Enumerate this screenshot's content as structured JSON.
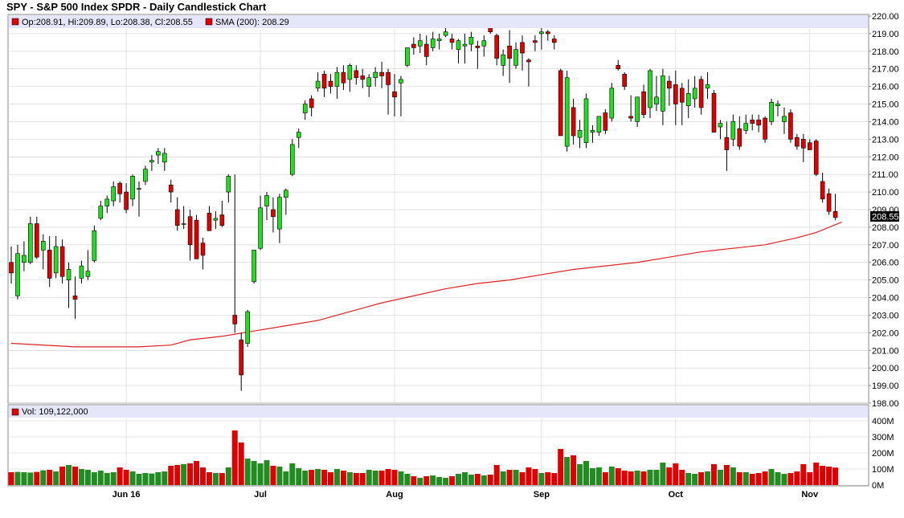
{
  "title": "SPY - S&P 500 Index SPDR - Daily Candlestick Chart",
  "colors": {
    "up": "#22dd22",
    "down": "#dd0000",
    "sma": "#dd2222",
    "legend_bg": "#e6e6fa",
    "grid": "#d0d0d0",
    "current_box": "#000000"
  },
  "price_legend": {
    "ohlc": "Op:208.91, Hi:209.89, Lo:208.38, Cl:208.55",
    "sma": "SMA (200): 208.29"
  },
  "volume_legend": {
    "label": "Vol: 109,122,000"
  },
  "current_price_label": "208.55",
  "chart_data": {
    "type": "candlestick",
    "price_axis": {
      "ylim": [
        198,
        220
      ],
      "ticks": [
        "198.00",
        "199.00",
        "200.00",
        "201.00",
        "202.00",
        "203.00",
        "204.00",
        "205.00",
        "206.00",
        "207.00",
        "208.00",
        "209.00",
        "210.00",
        "211.00",
        "212.00",
        "213.00",
        "214.00",
        "215.00",
        "216.00",
        "217.00",
        "218.00",
        "219.00",
        "220.00"
      ]
    },
    "volume_axis": {
      "ylim": [
        0,
        400
      ],
      "unit": "M",
      "ticks": [
        "0M",
        "100M",
        "200M",
        "300M",
        "400M"
      ]
    },
    "x_ticks": [
      {
        "label": "Jun 16",
        "index": 18
      },
      {
        "label": "Jul",
        "index": 39
      },
      {
        "label": "Aug",
        "index": 60
      },
      {
        "label": "Sep",
        "index": 83
      },
      {
        "label": "Oct",
        "index": 104
      },
      {
        "label": "Nov",
        "index": 125
      }
    ],
    "candles": [
      {
        "o": 206.0,
        "h": 206.9,
        "l": 204.8,
        "c": 205.4,
        "v": 80
      },
      {
        "o": 204.1,
        "h": 207.0,
        "l": 203.9,
        "c": 206.5,
        "v": 82
      },
      {
        "o": 206.0,
        "h": 207.2,
        "l": 205.5,
        "c": 206.4,
        "v": 80
      },
      {
        "o": 206.0,
        "h": 208.6,
        "l": 205.9,
        "c": 208.2,
        "v": 78
      },
      {
        "o": 208.2,
        "h": 208.6,
        "l": 206.2,
        "c": 206.3,
        "v": 82
      },
      {
        "o": 206.7,
        "h": 207.6,
        "l": 205.6,
        "c": 207.2,
        "v": 92
      },
      {
        "o": 206.7,
        "h": 207.5,
        "l": 204.6,
        "c": 205.1,
        "v": 95
      },
      {
        "o": 205.4,
        "h": 207.5,
        "l": 205.1,
        "c": 206.9,
        "v": 85
      },
      {
        "o": 206.9,
        "h": 207.3,
        "l": 204.8,
        "c": 205.2,
        "v": 115
      },
      {
        "o": 205.0,
        "h": 206.0,
        "l": 203.4,
        "c": 205.6,
        "v": 125
      },
      {
        "o": 204.1,
        "h": 205.2,
        "l": 202.8,
        "c": 203.9,
        "v": 115
      },
      {
        "o": 205.1,
        "h": 206.1,
        "l": 204.8,
        "c": 205.8,
        "v": 100
      },
      {
        "o": 205.2,
        "h": 206.7,
        "l": 205.0,
        "c": 205.5,
        "v": 95
      },
      {
        "o": 206.1,
        "h": 208.1,
        "l": 206.0,
        "c": 207.8,
        "v": 80
      },
      {
        "o": 208.5,
        "h": 209.5,
        "l": 208.4,
        "c": 209.2,
        "v": 90
      },
      {
        "o": 209.2,
        "h": 209.8,
        "l": 208.8,
        "c": 209.6,
        "v": 75
      },
      {
        "o": 209.5,
        "h": 210.6,
        "l": 209.2,
        "c": 210.3,
        "v": 80
      },
      {
        "o": 210.5,
        "h": 210.6,
        "l": 209.4,
        "c": 209.9,
        "v": 110
      },
      {
        "o": 210.0,
        "h": 210.5,
        "l": 208.8,
        "c": 209.0,
        "v": 95
      },
      {
        "o": 209.6,
        "h": 211.0,
        "l": 209.2,
        "c": 210.9,
        "v": 85
      },
      {
        "o": 210.2,
        "h": 210.6,
        "l": 208.6,
        "c": 210.2,
        "v": 70
      },
      {
        "o": 210.6,
        "h": 211.5,
        "l": 210.4,
        "c": 211.3,
        "v": 75
      },
      {
        "o": 211.7,
        "h": 212.1,
        "l": 211.2,
        "c": 211.8,
        "v": 72
      },
      {
        "o": 212.1,
        "h": 212.5,
        "l": 211.6,
        "c": 212.3,
        "v": 80
      },
      {
        "o": 211.7,
        "h": 212.5,
        "l": 211.2,
        "c": 212.2,
        "v": 85
      },
      {
        "o": 210.4,
        "h": 210.7,
        "l": 209.4,
        "c": 210.0,
        "v": 120
      },
      {
        "o": 209.0,
        "h": 209.7,
        "l": 207.8,
        "c": 208.1,
        "v": 125
      },
      {
        "o": 208.2,
        "h": 209.2,
        "l": 207.9,
        "c": 208.2,
        "v": 130
      },
      {
        "o": 208.6,
        "h": 209.0,
        "l": 206.1,
        "c": 207.0,
        "v": 135
      },
      {
        "o": 208.4,
        "h": 208.7,
        "l": 206.2,
        "c": 206.2,
        "v": 150
      },
      {
        "o": 207.1,
        "h": 207.4,
        "l": 205.6,
        "c": 206.4,
        "v": 110
      },
      {
        "o": 208.8,
        "h": 209.2,
        "l": 207.8,
        "c": 207.8,
        "v": 80
      },
      {
        "o": 208.4,
        "h": 208.9,
        "l": 207.9,
        "c": 208.5,
        "v": 75
      },
      {
        "o": 208.7,
        "h": 209.5,
        "l": 208.0,
        "c": 208.1,
        "v": 75
      },
      {
        "o": 210.0,
        "h": 211.0,
        "l": 209.4,
        "c": 210.9,
        "v": 110
      },
      {
        "o": 203.0,
        "h": 211.0,
        "l": 202.0,
        "c": 202.5,
        "v": 340
      },
      {
        "o": 201.6,
        "h": 202.0,
        "l": 198.7,
        "c": 199.6,
        "v": 265
      },
      {
        "o": 201.4,
        "h": 203.3,
        "l": 201.2,
        "c": 203.2,
        "v": 165
      },
      {
        "o": 204.9,
        "h": 206.7,
        "l": 204.8,
        "c": 206.7,
        "v": 150
      },
      {
        "o": 206.8,
        "h": 209.8,
        "l": 206.7,
        "c": 209.1,
        "v": 135
      },
      {
        "o": 209.2,
        "h": 210.0,
        "l": 208.4,
        "c": 209.8,
        "v": 155
      },
      {
        "o": 209.0,
        "h": 209.7,
        "l": 207.7,
        "c": 208.6,
        "v": 120
      },
      {
        "o": 207.9,
        "h": 209.9,
        "l": 207.1,
        "c": 209.7,
        "v": 115
      },
      {
        "o": 209.7,
        "h": 210.2,
        "l": 208.7,
        "c": 210.1,
        "v": 85
      },
      {
        "o": 211.0,
        "h": 213.0,
        "l": 210.9,
        "c": 212.7,
        "v": 135
      },
      {
        "o": 213.1,
        "h": 213.6,
        "l": 212.5,
        "c": 213.4,
        "v": 105
      },
      {
        "o": 214.5,
        "h": 215.2,
        "l": 214.1,
        "c": 215.0,
        "v": 90
      },
      {
        "o": 215.3,
        "h": 215.5,
        "l": 214.3,
        "c": 214.8,
        "v": 95
      },
      {
        "o": 215.9,
        "h": 216.8,
        "l": 215.7,
        "c": 216.3,
        "v": 100
      },
      {
        "o": 216.7,
        "h": 216.9,
        "l": 215.4,
        "c": 215.9,
        "v": 95
      },
      {
        "o": 216.3,
        "h": 216.7,
        "l": 215.6,
        "c": 216.0,
        "v": 80
      },
      {
        "o": 216.0,
        "h": 217.1,
        "l": 215.3,
        "c": 216.8,
        "v": 100
      },
      {
        "o": 216.8,
        "h": 217.2,
        "l": 215.8,
        "c": 216.2,
        "v": 90
      },
      {
        "o": 216.4,
        "h": 217.3,
        "l": 215.7,
        "c": 217.2,
        "v": 80
      },
      {
        "o": 216.9,
        "h": 217.2,
        "l": 216.1,
        "c": 216.5,
        "v": 75
      },
      {
        "o": 216.6,
        "h": 217.0,
        "l": 215.9,
        "c": 216.4,
        "v": 75
      },
      {
        "o": 216.0,
        "h": 216.7,
        "l": 215.4,
        "c": 216.5,
        "v": 95
      },
      {
        "o": 216.5,
        "h": 217.1,
        "l": 216.0,
        "c": 216.8,
        "v": 90
      },
      {
        "o": 216.8,
        "h": 217.4,
        "l": 215.9,
        "c": 216.6,
        "v": 90
      },
      {
        "o": 216.8,
        "h": 217.0,
        "l": 214.4,
        "c": 216.1,
        "v": 100
      },
      {
        "o": 215.7,
        "h": 216.7,
        "l": 214.3,
        "c": 215.4,
        "v": 95
      },
      {
        "o": 216.2,
        "h": 216.6,
        "l": 214.3,
        "c": 216.4,
        "v": 85
      },
      {
        "o": 217.2,
        "h": 218.2,
        "l": 217.1,
        "c": 218.2,
        "v": 70
      },
      {
        "o": 218.4,
        "h": 218.8,
        "l": 217.8,
        "c": 218.2,
        "v": 55
      },
      {
        "o": 218.3,
        "h": 219.0,
        "l": 217.9,
        "c": 218.6,
        "v": 45
      },
      {
        "o": 218.4,
        "h": 218.9,
        "l": 217.2,
        "c": 217.7,
        "v": 55
      },
      {
        "o": 218.2,
        "h": 219.1,
        "l": 218.0,
        "c": 218.7,
        "v": 60
      },
      {
        "o": 218.6,
        "h": 219.0,
        "l": 218.1,
        "c": 218.7,
        "v": 50
      },
      {
        "o": 218.9,
        "h": 219.6,
        "l": 218.8,
        "c": 219.1,
        "v": 45
      },
      {
        "o": 218.7,
        "h": 219.0,
        "l": 218.1,
        "c": 218.5,
        "v": 55
      },
      {
        "o": 218.1,
        "h": 218.7,
        "l": 217.3,
        "c": 218.6,
        "v": 70
      },
      {
        "o": 218.3,
        "h": 219.0,
        "l": 217.3,
        "c": 218.4,
        "v": 80
      },
      {
        "o": 218.4,
        "h": 219.1,
        "l": 218.0,
        "c": 218.8,
        "v": 65
      },
      {
        "o": 218.3,
        "h": 218.6,
        "l": 217.0,
        "c": 218.2,
        "v": 70
      },
      {
        "o": 218.3,
        "h": 218.9,
        "l": 217.7,
        "c": 218.6,
        "v": 60
      },
      {
        "o": 219.5,
        "h": 219.6,
        "l": 219.0,
        "c": 219.1,
        "v": 65
      },
      {
        "o": 218.9,
        "h": 219.0,
        "l": 217.2,
        "c": 217.6,
        "v": 125
      },
      {
        "o": 217.2,
        "h": 218.1,
        "l": 216.6,
        "c": 217.8,
        "v": 85
      },
      {
        "o": 218.3,
        "h": 219.2,
        "l": 216.2,
        "c": 217.6,
        "v": 95
      },
      {
        "o": 217.2,
        "h": 218.5,
        "l": 217.0,
        "c": 218.1,
        "v": 95
      },
      {
        "o": 218.5,
        "h": 218.9,
        "l": 216.9,
        "c": 217.9,
        "v": 80
      },
      {
        "o": 217.5,
        "h": 217.6,
        "l": 216.0,
        "c": 217.4,
        "v": 110
      },
      {
        "o": 218.6,
        "h": 218.9,
        "l": 218.0,
        "c": 218.5,
        "v": 100
      },
      {
        "o": 219.0,
        "h": 219.4,
        "l": 218.1,
        "c": 219.1,
        "v": 75
      },
      {
        "o": 219.1,
        "h": 219.2,
        "l": 218.6,
        "c": 219.0,
        "v": 80
      },
      {
        "o": 218.7,
        "h": 218.9,
        "l": 218.1,
        "c": 218.5,
        "v": 75
      },
      {
        "o": 216.9,
        "h": 217.0,
        "l": 213.2,
        "c": 213.2,
        "v": 225
      },
      {
        "o": 212.6,
        "h": 216.9,
        "l": 212.3,
        "c": 216.5,
        "v": 175
      },
      {
        "o": 214.8,
        "h": 215.3,
        "l": 212.7,
        "c": 213.2,
        "v": 185
      },
      {
        "o": 213.1,
        "h": 214.1,
        "l": 212.5,
        "c": 213.5,
        "v": 130
      },
      {
        "o": 212.8,
        "h": 215.6,
        "l": 212.5,
        "c": 215.3,
        "v": 150
      },
      {
        "o": 213.4,
        "h": 213.8,
        "l": 212.8,
        "c": 213.5,
        "v": 105
      },
      {
        "o": 213.4,
        "h": 214.3,
        "l": 213.2,
        "c": 214.3,
        "v": 110
      },
      {
        "o": 214.5,
        "h": 214.7,
        "l": 213.3,
        "c": 213.5,
        "v": 80
      },
      {
        "o": 214.2,
        "h": 216.2,
        "l": 214.0,
        "c": 215.9,
        "v": 115
      },
      {
        "o": 217.2,
        "h": 217.5,
        "l": 216.9,
        "c": 217.0,
        "v": 105
      },
      {
        "o": 216.7,
        "h": 216.8,
        "l": 215.8,
        "c": 216.0,
        "v": 90
      },
      {
        "o": 214.3,
        "h": 215.5,
        "l": 214.0,
        "c": 214.2,
        "v": 85
      },
      {
        "o": 214.0,
        "h": 215.3,
        "l": 213.7,
        "c": 215.4,
        "v": 90
      },
      {
        "o": 215.7,
        "h": 216.1,
        "l": 214.2,
        "c": 214.4,
        "v": 85
      },
      {
        "o": 214.8,
        "h": 217.0,
        "l": 214.2,
        "c": 216.9,
        "v": 95
      },
      {
        "o": 215.0,
        "h": 216.6,
        "l": 214.6,
        "c": 215.4,
        "v": 95
      },
      {
        "o": 214.6,
        "h": 217.0,
        "l": 213.8,
        "c": 216.6,
        "v": 140
      },
      {
        "o": 216.3,
        "h": 216.6,
        "l": 214.9,
        "c": 215.9,
        "v": 110
      },
      {
        "o": 216.1,
        "h": 216.9,
        "l": 213.8,
        "c": 215.0,
        "v": 135
      },
      {
        "o": 215.9,
        "h": 216.2,
        "l": 213.8,
        "c": 215.1,
        "v": 95
      },
      {
        "o": 214.9,
        "h": 216.4,
        "l": 214.2,
        "c": 215.6,
        "v": 75
      },
      {
        "o": 215.3,
        "h": 216.6,
        "l": 214.8,
        "c": 215.9,
        "v": 70
      },
      {
        "o": 216.4,
        "h": 216.6,
        "l": 214.4,
        "c": 214.8,
        "v": 80
      },
      {
        "o": 215.9,
        "h": 216.8,
        "l": 215.3,
        "c": 216.1,
        "v": 85
      },
      {
        "o": 215.6,
        "h": 215.8,
        "l": 213.5,
        "c": 213.4,
        "v": 130
      },
      {
        "o": 213.7,
        "h": 214.1,
        "l": 213.0,
        "c": 213.9,
        "v": 95
      },
      {
        "o": 213.1,
        "h": 214.0,
        "l": 211.2,
        "c": 212.4,
        "v": 125
      },
      {
        "o": 213.0,
        "h": 214.4,
        "l": 212.6,
        "c": 214.0,
        "v": 110
      },
      {
        "o": 213.6,
        "h": 214.3,
        "l": 212.4,
        "c": 212.6,
        "v": 80
      },
      {
        "o": 213.5,
        "h": 214.4,
        "l": 213.3,
        "c": 213.9,
        "v": 80
      },
      {
        "o": 214.1,
        "h": 214.4,
        "l": 213.5,
        "c": 213.9,
        "v": 70
      },
      {
        "o": 214.1,
        "h": 214.4,
        "l": 213.4,
        "c": 213.8,
        "v": 75
      },
      {
        "o": 214.2,
        "h": 214.3,
        "l": 212.8,
        "c": 213.0,
        "v": 85
      },
      {
        "o": 214.0,
        "h": 215.3,
        "l": 213.8,
        "c": 215.1,
        "v": 100
      },
      {
        "o": 214.9,
        "h": 215.2,
        "l": 214.3,
        "c": 215.0,
        "v": 80
      },
      {
        "o": 214.0,
        "h": 214.8,
        "l": 213.3,
        "c": 214.3,
        "v": 70
      },
      {
        "o": 214.5,
        "h": 214.7,
        "l": 212.8,
        "c": 213.0,
        "v": 75
      },
      {
        "o": 213.1,
        "h": 213.3,
        "l": 212.4,
        "c": 212.6,
        "v": 85
      },
      {
        "o": 213.0,
        "h": 213.3,
        "l": 211.7,
        "c": 212.5,
        "v": 130
      },
      {
        "o": 212.8,
        "h": 213.0,
        "l": 212.5,
        "c": 212.4,
        "v": 80
      },
      {
        "o": 212.9,
        "h": 213.0,
        "l": 210.9,
        "c": 211.0,
        "v": 140
      },
      {
        "o": 210.6,
        "h": 211.1,
        "l": 209.4,
        "c": 209.6,
        "v": 120
      },
      {
        "o": 209.9,
        "h": 210.2,
        "l": 208.7,
        "c": 208.9,
        "v": 115
      },
      {
        "o": 208.9,
        "h": 209.9,
        "l": 208.4,
        "c": 208.55,
        "v": 109
      }
    ],
    "sma_200": {
      "name": "SMA (200)",
      "points": [
        [
          0,
          201.4
        ],
        [
          10,
          201.2
        ],
        [
          20,
          201.2
        ],
        [
          25,
          201.3
        ],
        [
          28,
          201.6
        ],
        [
          33,
          201.8
        ],
        [
          38,
          202.1
        ],
        [
          43,
          202.4
        ],
        [
          48,
          202.7
        ],
        [
          53,
          203.2
        ],
        [
          58,
          203.7
        ],
        [
          63,
          204.1
        ],
        [
          68,
          204.5
        ],
        [
          73,
          204.8
        ],
        [
          78,
          205.0
        ],
        [
          83,
          205.3
        ],
        [
          88,
          205.6
        ],
        [
          93,
          205.8
        ],
        [
          98,
          206.0
        ],
        [
          103,
          206.3
        ],
        [
          108,
          206.6
        ],
        [
          113,
          206.8
        ],
        [
          118,
          207.0
        ],
        [
          123,
          207.4
        ],
        [
          126,
          207.7
        ],
        [
          130,
          208.29
        ]
      ]
    }
  }
}
